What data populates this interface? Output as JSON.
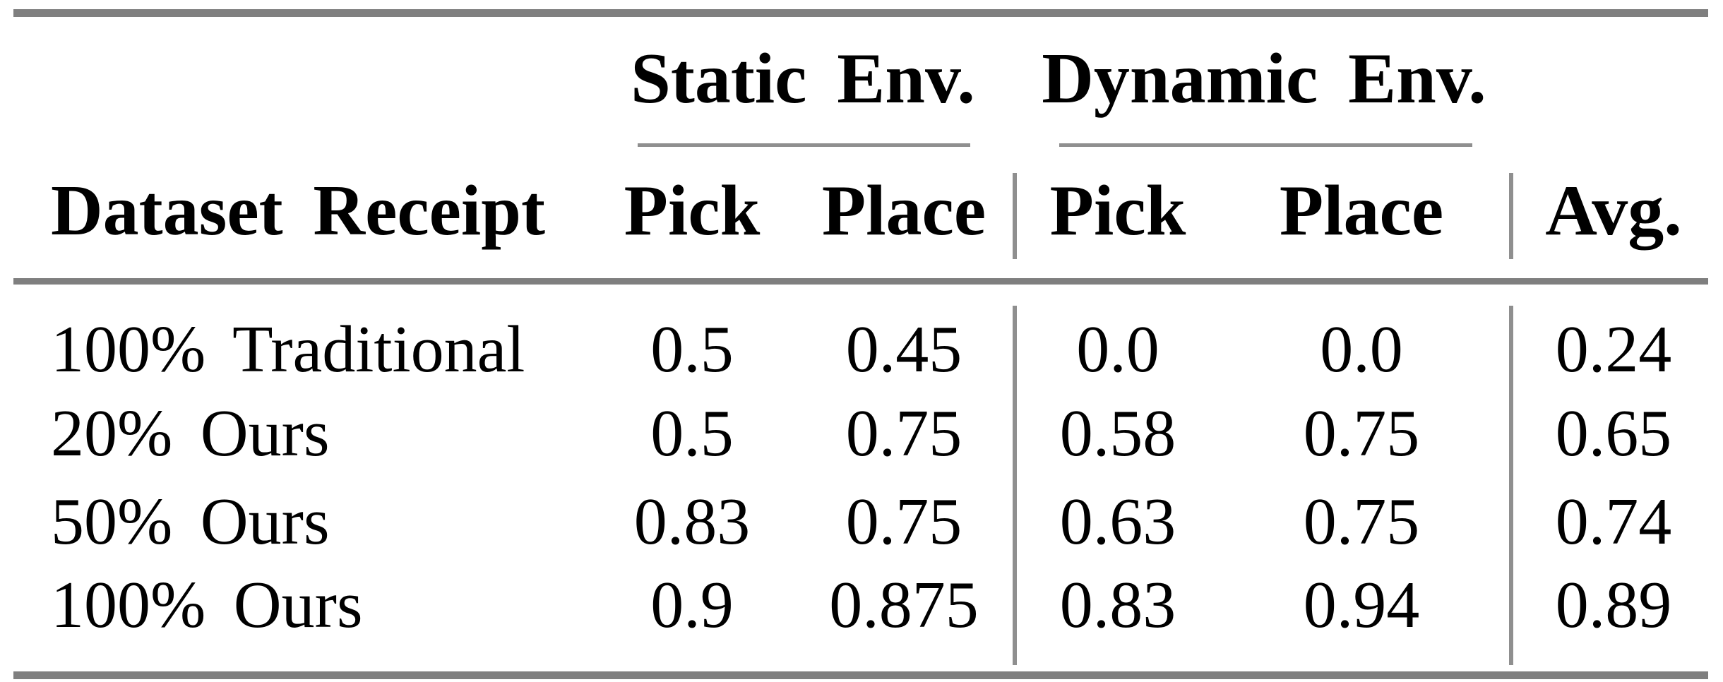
{
  "table": {
    "group_headers": {
      "static": "Static Env.",
      "dynamic": "Dynamic Env."
    },
    "column_headers": {
      "dataset": "Dataset Receipt",
      "static_pick": "Pick",
      "static_place": "Place",
      "dynamic_pick": "Pick",
      "dynamic_place": "Place",
      "avg": "Avg."
    },
    "rows": [
      {
        "dataset": "100% Traditional",
        "static_pick": "0.5",
        "static_place": "0.45",
        "dynamic_pick": "0.0",
        "dynamic_place": "0.0",
        "avg": "0.24"
      },
      {
        "dataset": "20% Ours",
        "static_pick": "0.5",
        "static_place": "0.75",
        "dynamic_pick": "0.58",
        "dynamic_place": "0.75",
        "avg": "0.65"
      },
      {
        "dataset": "50% Ours",
        "static_pick": "0.83",
        "static_place": "0.75",
        "dynamic_pick": "0.63",
        "dynamic_place": "0.75",
        "avg": "0.74"
      },
      {
        "dataset": "100% Ours",
        "static_pick": "0.9",
        "static_place": "0.875",
        "dynamic_pick": "0.83",
        "dynamic_place": "0.94",
        "avg": "0.89"
      }
    ],
    "colors": {
      "rule_thick": "#7f7f7f",
      "rule_thin": "#8f8f8f",
      "text": "#000000",
      "background": "#ffffff"
    }
  },
  "chart_data": {
    "type": "table",
    "title": "",
    "column_groups": [
      "",
      "Static Env.",
      "Static Env.",
      "Dynamic Env.",
      "Dynamic Env.",
      ""
    ],
    "columns": [
      "Dataset Receipt",
      "Pick",
      "Place",
      "Pick",
      "Place",
      "Avg."
    ],
    "rows": [
      [
        "100% Traditional",
        0.5,
        0.45,
        0.0,
        0.0,
        0.24
      ],
      [
        "20% Ours",
        0.5,
        0.75,
        0.58,
        0.75,
        0.65
      ],
      [
        "50% Ours",
        0.83,
        0.75,
        0.63,
        0.75,
        0.74
      ],
      [
        "100% Ours",
        0.9,
        0.875,
        0.83,
        0.94,
        0.89
      ]
    ]
  }
}
